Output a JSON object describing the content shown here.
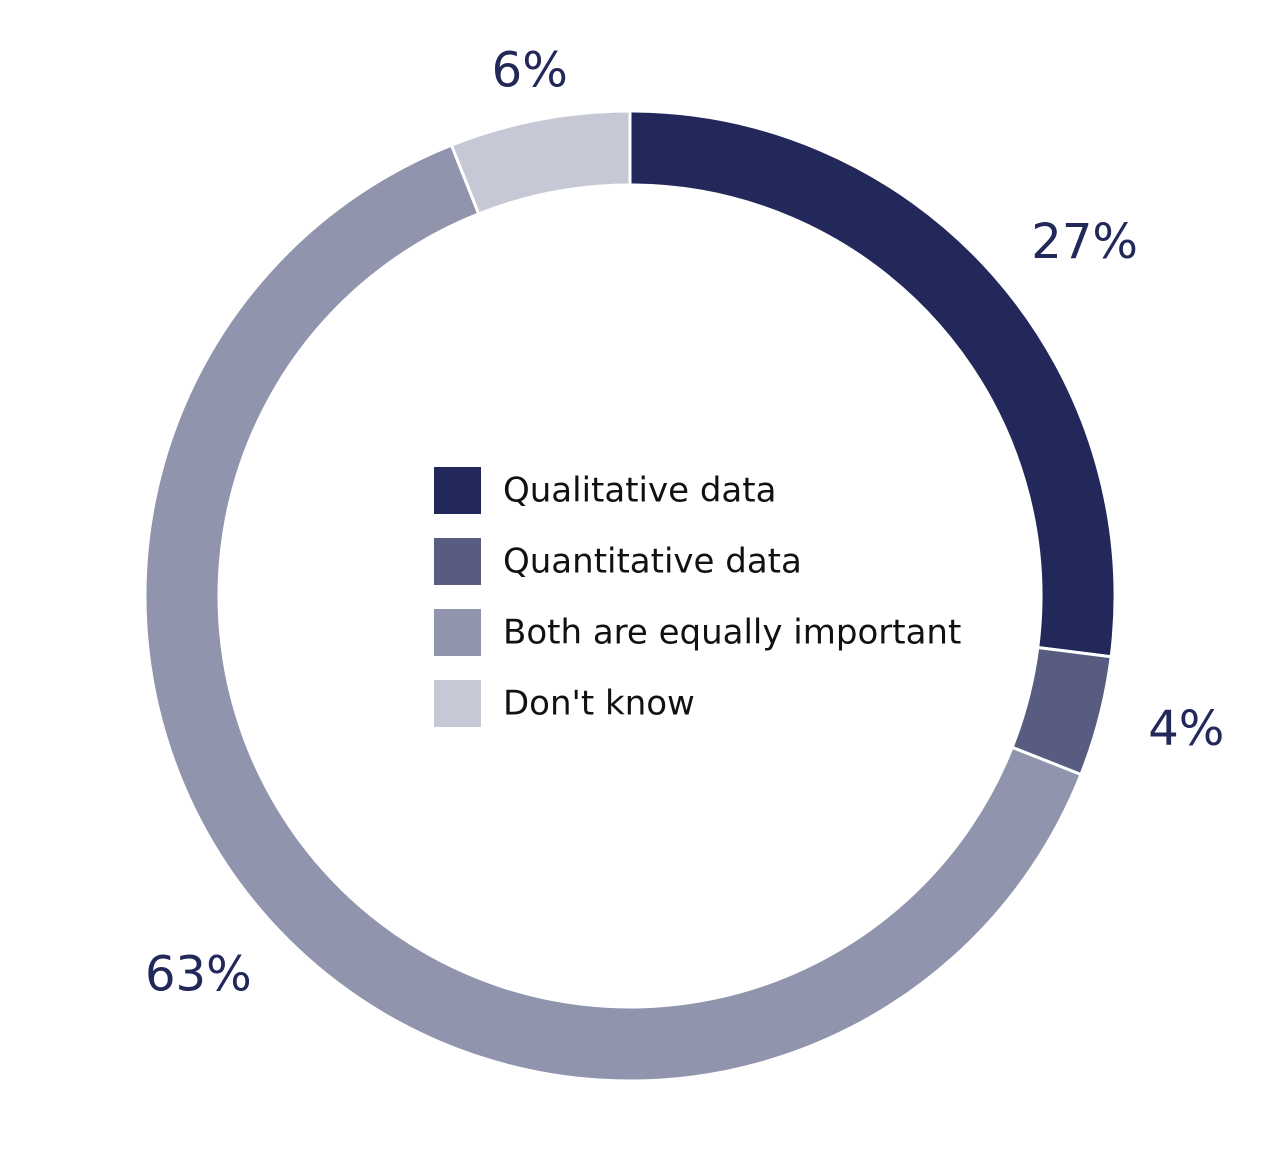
{
  "chart_data": {
    "type": "pie",
    "variant": "donut",
    "title": "",
    "slices": [
      {
        "label": "Qualitative data",
        "value": 27,
        "value_label": "27%",
        "color": "#222859"
      },
      {
        "label": "Quantitative data",
        "value": 4,
        "value_label": "4%",
        "color": "#575c80"
      },
      {
        "label": "Both are equally important",
        "value": 63,
        "value_label": "63%",
        "color": "#9094ad"
      },
      {
        "label": "Don't know",
        "value": 6,
        "value_label": "6%",
        "color": "#c6c8d5"
      }
    ],
    "start_angle": "12 o'clock",
    "direction": "clockwise",
    "legend": {
      "placement": "center"
    }
  }
}
